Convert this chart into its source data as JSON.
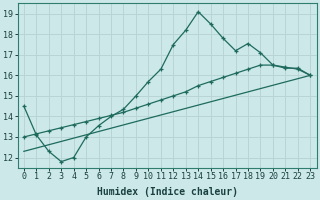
{
  "xlabel": "Humidex (Indice chaleur)",
  "bg_color": "#cce8e8",
  "grid_color": "#b8d4d4",
  "line_color": "#1e6b5e",
  "xlim": [
    -0.5,
    23.5
  ],
  "ylim": [
    11.5,
    19.5
  ],
  "xticks": [
    0,
    1,
    2,
    3,
    4,
    5,
    6,
    7,
    8,
    9,
    10,
    11,
    12,
    13,
    14,
    15,
    16,
    17,
    18,
    19,
    20,
    21,
    22,
    23
  ],
  "yticks": [
    12,
    13,
    14,
    15,
    16,
    17,
    18,
    19
  ],
  "line1_x": [
    0,
    1,
    2,
    3,
    4,
    5,
    6,
    7,
    8,
    9,
    10,
    11,
    12,
    13,
    14,
    15,
    16,
    17,
    18,
    19,
    20,
    21,
    22,
    23
  ],
  "line1_y": [
    14.5,
    13.1,
    12.3,
    11.8,
    12.0,
    13.0,
    13.55,
    14.0,
    14.35,
    15.0,
    15.7,
    16.3,
    17.5,
    18.2,
    19.1,
    18.5,
    17.8,
    17.2,
    17.55,
    17.1,
    16.5,
    16.35,
    16.35,
    16.0
  ],
  "line2_x": [
    0,
    1,
    2,
    3,
    4,
    5,
    6,
    7,
    8,
    9,
    10,
    11,
    12,
    13,
    14,
    15,
    16,
    17,
    18,
    19,
    20,
    21,
    22,
    23
  ],
  "line2_y": [
    13.0,
    13.15,
    13.3,
    13.45,
    13.6,
    13.75,
    13.9,
    14.05,
    14.2,
    14.4,
    14.6,
    14.8,
    15.0,
    15.2,
    15.5,
    15.7,
    15.9,
    16.1,
    16.3,
    16.5,
    16.5,
    16.4,
    16.3,
    16.0
  ],
  "line3_x": [
    0,
    23
  ],
  "line3_y": [
    12.3,
    16.0
  ],
  "xlabel_fontsize": 7,
  "tick_fontsize": 6
}
